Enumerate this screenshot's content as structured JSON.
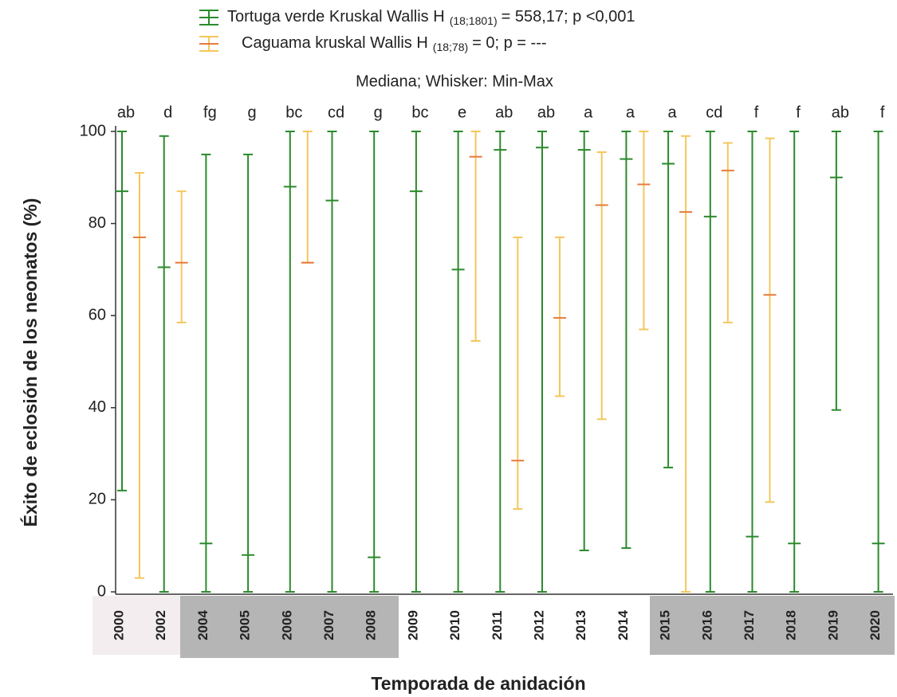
{
  "chart_data": {
    "type": "range",
    "subtitle": "Mediana; Whisker: Min-Max",
    "x_label": "Temporada de anidación",
    "y_label": "Éxito de eclosión de los neonatos (%)",
    "categories": [
      "2000",
      "2002",
      "2004",
      "2005",
      "2006",
      "2007",
      "2008",
      "2009",
      "2010",
      "2011",
      "2012",
      "2013",
      "2014",
      "2015",
      "2016",
      "2017",
      "2018",
      "2019",
      "2020"
    ],
    "annotations": [
      "ab",
      "d",
      "fg",
      "g",
      "bc",
      "cd",
      "g",
      "bc",
      "e",
      "ab",
      "ab",
      "a",
      "a",
      "a",
      "cd",
      "f",
      "f",
      "ab",
      "f"
    ],
    "legend_subscripts": [
      "(18;1801)",
      "(18;78)"
    ],
    "legend_suffixes": [
      "= 558,17; p <0,001",
      "= 0; p = ---"
    ],
    "series": [
      {
        "name": "Tortuga verde Kruskal Wallis H",
        "color": "#2b8a2b",
        "median_color": "#2b8a2b",
        "values": [
          87,
          70.5,
          10.5,
          8,
          88,
          85,
          7.5,
          87,
          70,
          96,
          96.5,
          96,
          94,
          93,
          81.5,
          12,
          10.5,
          90,
          10.5
        ],
        "min": [
          22,
          0,
          0,
          0,
          0,
          0,
          0,
          0,
          0,
          0,
          0,
          9,
          9.5,
          27,
          0,
          0,
          0,
          39.5,
          0
        ],
        "max": [
          100,
          99,
          95,
          95,
          100,
          100,
          100,
          100,
          100,
          100,
          100,
          100,
          100,
          100,
          100,
          100,
          100,
          100,
          100
        ]
      },
      {
        "name": "Caguama kruskal Wallis H",
        "color": "#f4c75c",
        "median_color": "#e57b3c",
        "values": [
          77,
          71.5,
          null,
          null,
          71.5,
          null,
          null,
          null,
          94.5,
          28.5,
          59.5,
          84,
          88.5,
          82.5,
          91.5,
          64.5,
          null,
          null,
          null
        ],
        "min": [
          3,
          58.5,
          null,
          null,
          71.5,
          null,
          null,
          null,
          54.5,
          18,
          42.5,
          37.5,
          57,
          0,
          58.5,
          19.5,
          null,
          null,
          null
        ],
        "max": [
          91,
          87,
          null,
          null,
          100,
          null,
          null,
          null,
          100,
          77,
          77,
          95.5,
          100,
          99,
          97.5,
          98.5,
          null,
          null,
          null
        ]
      }
    ],
    "ylim": [
      0,
      100
    ],
    "yticks": [
      0,
      20,
      40,
      60,
      80,
      100
    ]
  }
}
